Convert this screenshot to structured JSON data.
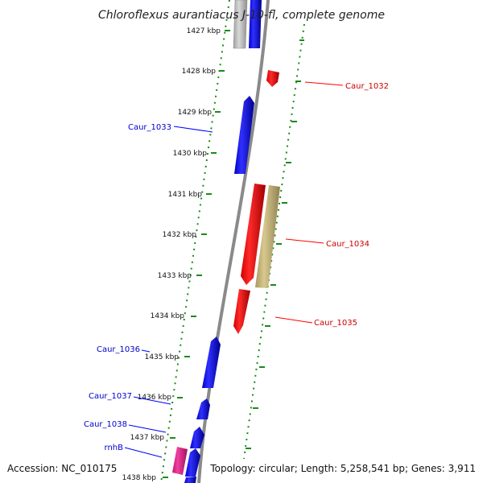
{
  "title": "Chloroflexus aurantiacus J-10-fl, complete genome",
  "footer": {
    "accession": "Accession: NC_010175",
    "topology": "Topology: circular; Length: 5,258,541 bp; Genes: 3,911"
  },
  "ticks": [
    "1427 kbp",
    "1428 kbp",
    "1429 kbp",
    "1430 kbp",
    "1431 kbp",
    "1432 kbp",
    "1433 kbp",
    "1434 kbp",
    "1435 kbp",
    "1436 kbp",
    "1437 kbp",
    "1438 kbp"
  ],
  "gene_labels": {
    "caur_1032": "Caur_1032",
    "caur_1033": "Caur_1033",
    "caur_1034": "Caur_1034",
    "caur_1035": "Caur_1035",
    "caur_1036": "Caur_1036",
    "caur_1037": "Caur_1037",
    "caur_1038": "Caur_1038",
    "rnhB": "rnhB"
  },
  "colors": {
    "forward": "#ff0000",
    "reverse": "#0000ff",
    "rna": "#c8b870",
    "other": "#e0308a",
    "partial": "#bbbbbb",
    "backbone": "#888888",
    "ruler": "#1a8a1a"
  }
}
